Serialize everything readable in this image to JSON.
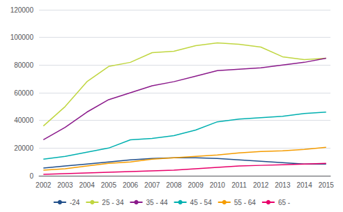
{
  "chart_data": {
    "type": "line",
    "x": [
      2002,
      2003,
      2004,
      2005,
      2006,
      2007,
      2008,
      2009,
      2010,
      2011,
      2012,
      2013,
      2014,
      2015
    ],
    "series": [
      {
        "name": "-24",
        "color": "#214f8a",
        "values": [
          5500,
          7000,
          8500,
          10000,
          11500,
          12500,
          13000,
          13000,
          12500,
          11500,
          10500,
          9500,
          8500,
          8500
        ]
      },
      {
        "name": "25 - 34",
        "color": "#c0d640",
        "values": [
          36000,
          50000,
          68000,
          79000,
          82000,
          89000,
          90000,
          94000,
          96000,
          95000,
          93000,
          86000,
          84000,
          85000
        ]
      },
      {
        "name": "35 - 44",
        "color": "#8b1a8b",
        "values": [
          26000,
          35000,
          46000,
          55000,
          60000,
          65000,
          68000,
          72000,
          76000,
          77000,
          78000,
          80000,
          82000,
          85000
        ]
      },
      {
        "name": "45 - 54",
        "color": "#00b0b0",
        "values": [
          12000,
          14000,
          17000,
          20000,
          26000,
          27000,
          29000,
          33000,
          39000,
          41000,
          42000,
          43000,
          45000,
          46000
        ]
      },
      {
        "name": "55 - 64",
        "color": "#f59c00",
        "values": [
          4000,
          5000,
          7000,
          9000,
          10000,
          12000,
          13000,
          14000,
          15000,
          16500,
          17500,
          18000,
          19000,
          20500
        ]
      },
      {
        "name": "65 -",
        "color": "#e8006a",
        "values": [
          1000,
          1500,
          2000,
          2500,
          3000,
          3500,
          4000,
          5000,
          6000,
          7000,
          7500,
          8000,
          8500,
          9000
        ]
      }
    ],
    "xlim": [
      2001.8,
      2015.2
    ],
    "xticks": [
      2002,
      2003,
      2004,
      2005,
      2006,
      2007,
      2008,
      2009,
      2010,
      2011,
      2012,
      2013,
      2014,
      2015
    ],
    "ylim": [
      0,
      120000
    ],
    "yticks": [
      0,
      20000,
      40000,
      60000,
      80000,
      100000,
      120000
    ],
    "grid": true,
    "legend": "bottom"
  }
}
